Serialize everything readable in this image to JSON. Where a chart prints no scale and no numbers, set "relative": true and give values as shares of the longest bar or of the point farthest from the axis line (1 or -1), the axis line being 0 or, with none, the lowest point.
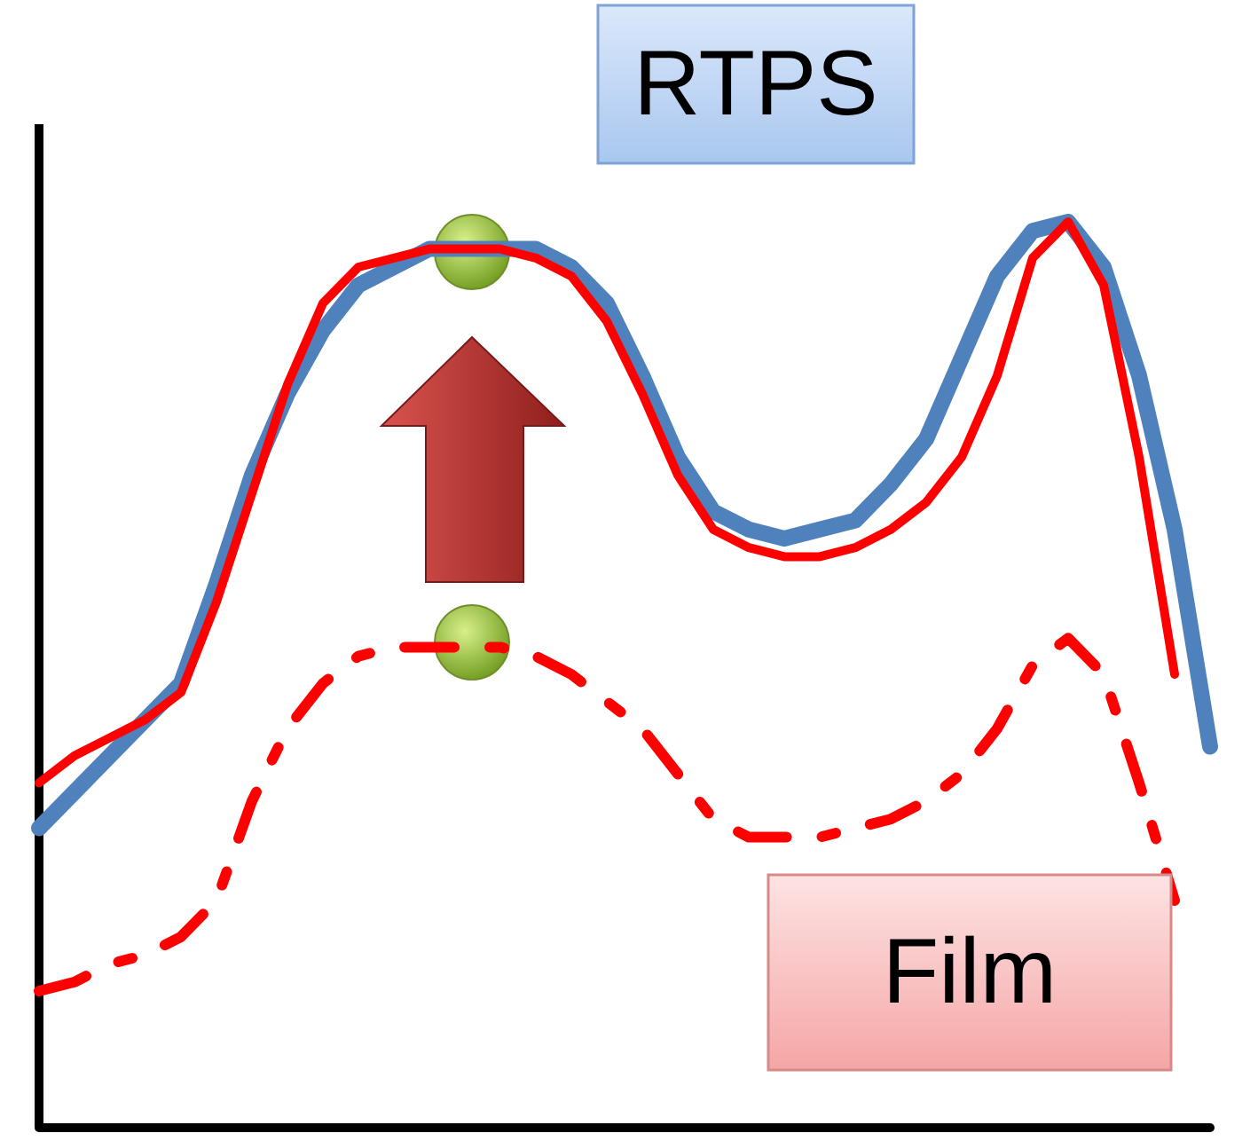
{
  "chart_data": {
    "type": "line",
    "relative": true,
    "categories": [
      null,
      null,
      null,
      null,
      null,
      null,
      null,
      null,
      null,
      null,
      null,
      null,
      null,
      null,
      null,
      null,
      null,
      null,
      null,
      null,
      null,
      null,
      null,
      null,
      null,
      null,
      null,
      null,
      null,
      null,
      null,
      null,
      null,
      null
    ],
    "series": [
      {
        "color": "#4f81bd",
        "values": [
          0.33,
          0.37,
          0.41,
          0.45,
          0.49,
          0.6,
          0.72,
          0.81,
          0.88,
          0.93,
          0.95,
          0.97,
          0.97,
          0.97,
          0.97,
          0.95,
          0.91,
          0.83,
          0.74,
          0.68,
          0.66,
          0.65,
          0.66,
          0.67,
          0.71,
          0.76,
          0.85,
          0.94,
          0.99,
          1.0,
          0.95,
          0.83,
          0.66,
          0.42
        ]
      },
      {
        "color": "#ff0000",
        "values": [
          0.38,
          0.41,
          0.43,
          0.45,
          0.48,
          0.58,
          0.7,
          0.82,
          0.91,
          0.95,
          0.96,
          0.97,
          0.97,
          0.97,
          0.96,
          0.94,
          0.89,
          0.81,
          0.72,
          0.66,
          0.64,
          0.63,
          0.63,
          0.64,
          0.66,
          0.69,
          0.74,
          0.83,
          0.96,
          1.0,
          0.93,
          0.74,
          0.5,
          null
        ]
      },
      {
        "color": "#ff0000",
        "line_style": "dashed",
        "values": [
          0.15,
          0.16,
          0.18,
          0.19,
          0.21,
          0.25,
          0.36,
          0.44,
          0.49,
          0.52,
          0.53,
          0.53,
          0.53,
          0.53,
          0.52,
          0.5,
          0.47,
          0.44,
          0.39,
          0.34,
          0.32,
          0.32,
          0.32,
          0.33,
          0.34,
          0.36,
          0.39,
          0.44,
          0.51,
          0.54,
          0.5,
          0.38,
          0.25,
          null
        ]
      }
    ],
    "annotations": [
      "RTPS",
      "Film"
    ],
    "grid": false,
    "marker": "none"
  }
}
